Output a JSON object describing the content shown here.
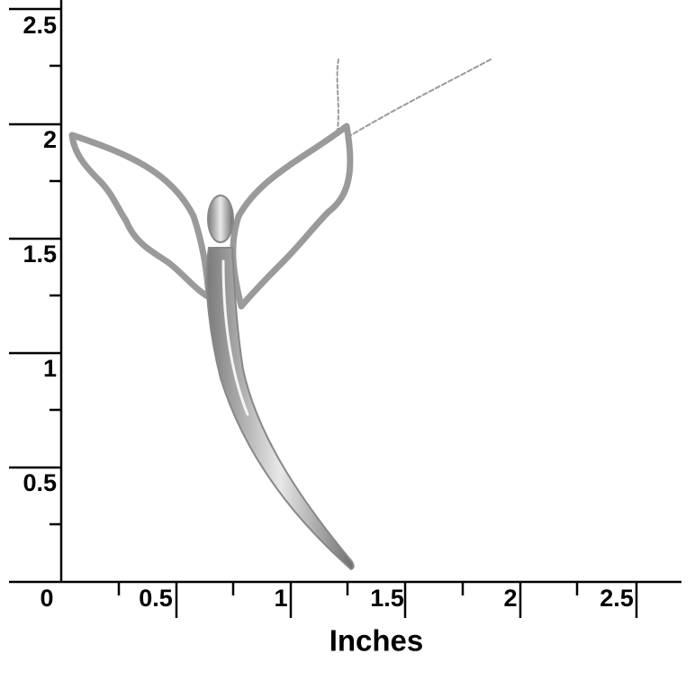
{
  "ruler": {
    "y_labels": [
      "2.5",
      "2",
      "1.5",
      "1",
      "0.5"
    ],
    "x_labels": [
      "0",
      "0.5",
      "1",
      "1.5",
      "2",
      "2.5"
    ],
    "unit": "Inches"
  }
}
